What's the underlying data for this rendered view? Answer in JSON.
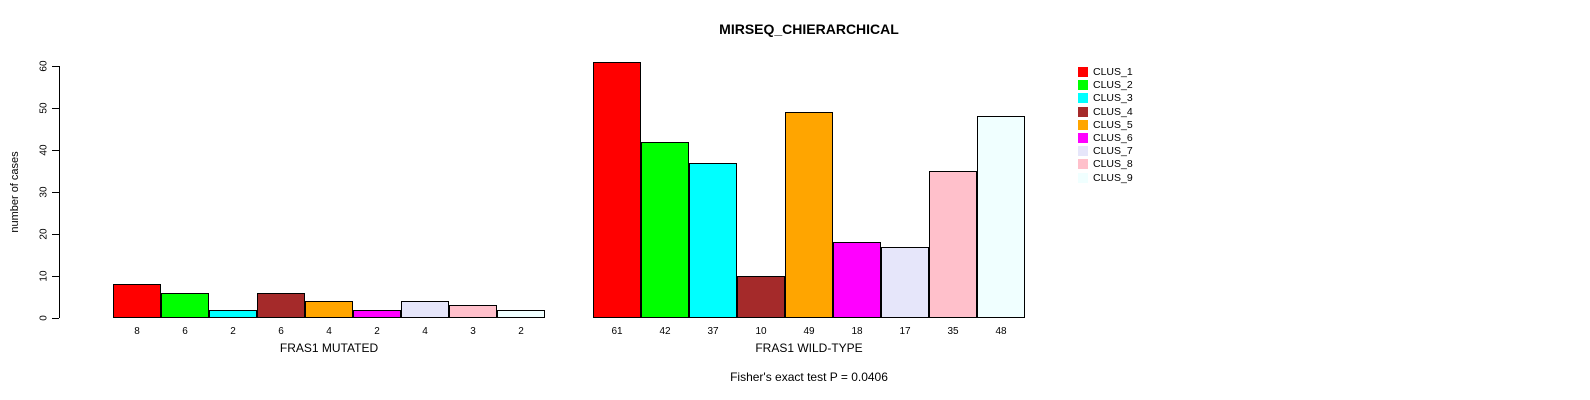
{
  "title": "MIRSEQ_CHIERARCHICAL",
  "footer": "Fisher's exact test P = 0.0406",
  "chart_data": {
    "type": "bar",
    "title": "MIRSEQ_CHIERARCHICAL",
    "xlabel": "",
    "ylabel": "number of cases",
    "ylim": [
      0,
      60
    ],
    "y_ticks": [
      0,
      10,
      20,
      30,
      40,
      50,
      60
    ],
    "grid": "off",
    "legend_position": "right",
    "categories": [
      "CLUS_1",
      "CLUS_2",
      "CLUS_3",
      "CLUS_4",
      "CLUS_5",
      "CLUS_6",
      "CLUS_7",
      "CLUS_8",
      "CLUS_9"
    ],
    "colors": [
      "#FF0000",
      "#00FF00",
      "#00FFFF",
      "#A52A2A",
      "#FFA500",
      "#FF00FF",
      "#E6E6FA",
      "#FFC0CB",
      "#F0FFFF"
    ],
    "bar_border_color": "#000000",
    "groups": [
      {
        "label": "FRAS1 MUTATED",
        "values": [
          8,
          6,
          2,
          6,
          4,
          2,
          4,
          3,
          2
        ]
      },
      {
        "label": "FRAS1 WILD-TYPE",
        "values": [
          61,
          42,
          37,
          10,
          49,
          18,
          17,
          35,
          48
        ]
      }
    ],
    "annotation": "Fisher's exact test P = 0.0406"
  }
}
